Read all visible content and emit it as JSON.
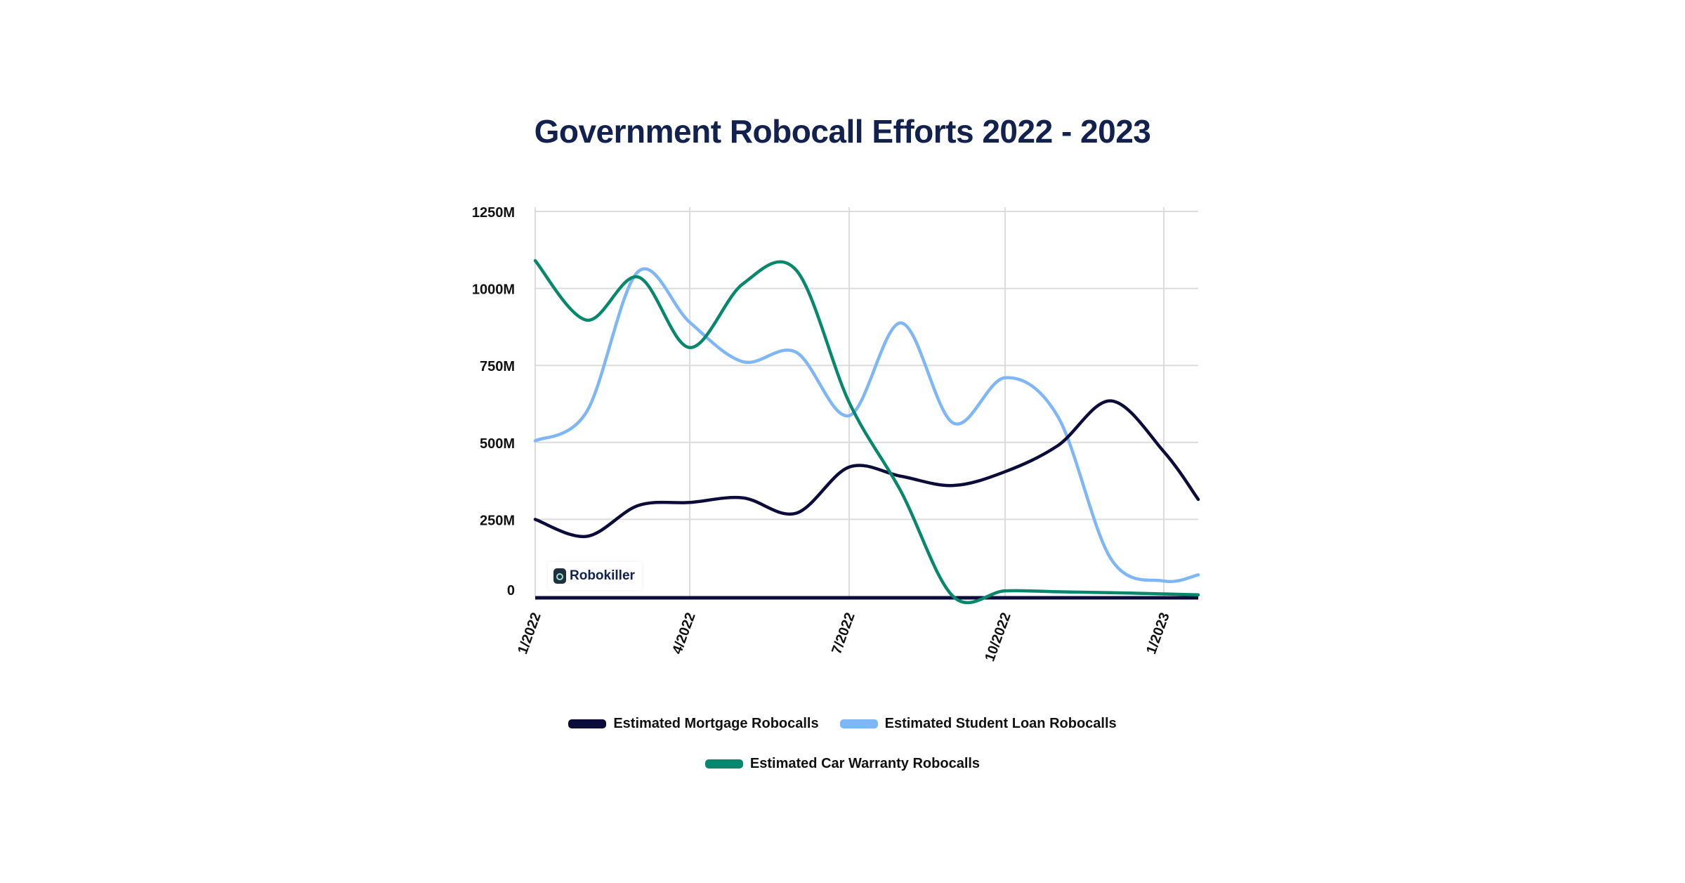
{
  "chart_data": {
    "type": "line",
    "title": "Government Robocall Efforts 2022 - 2023",
    "xlabel": "",
    "ylabel": "",
    "x": [
      "1/2022",
      "2/2022",
      "3/2022",
      "4/2022",
      "5/2022",
      "6/2022",
      "7/2022",
      "8/2022",
      "9/2022",
      "10/2022",
      "11/2022",
      "12/2022",
      "1/2023",
      "2/2023"
    ],
    "x_tick_labels": [
      "1/2022",
      "4/2022",
      "7/2022",
      "10/2022",
      "1/2023"
    ],
    "y_tick_labels": [
      "0",
      "250M",
      "500M",
      "750M",
      "1000M",
      "1250M"
    ],
    "y_ticks": [
      0,
      250,
      500,
      750,
      1000,
      1250
    ],
    "ylim": [
      0,
      1250
    ],
    "y_unit": "millions",
    "grid": true,
    "legend_position": "bottom",
    "series": [
      {
        "name": "Estimated Mortgage Robocalls",
        "color": "#0b0c3a",
        "values": [
          250,
          195,
          295,
          305,
          320,
          270,
          420,
          390,
          360,
          405,
          490,
          635,
          470,
          315
        ]
      },
      {
        "name": "Estimated Student Loan Robocalls",
        "color": "#7fb6f6",
        "values": [
          505,
          600,
          1055,
          890,
          762,
          793,
          587,
          888,
          563,
          710,
          583,
          122,
          50,
          70
        ]
      },
      {
        "name": "Estimated Car Warranty Robocalls",
        "color": "#07876c",
        "values": [
          1090,
          897,
          1037,
          808,
          1015,
          1060,
          630,
          340,
          0,
          18,
          15,
          12,
          8,
          5
        ]
      }
    ]
  },
  "watermark": {
    "text": "Robokiller"
  }
}
